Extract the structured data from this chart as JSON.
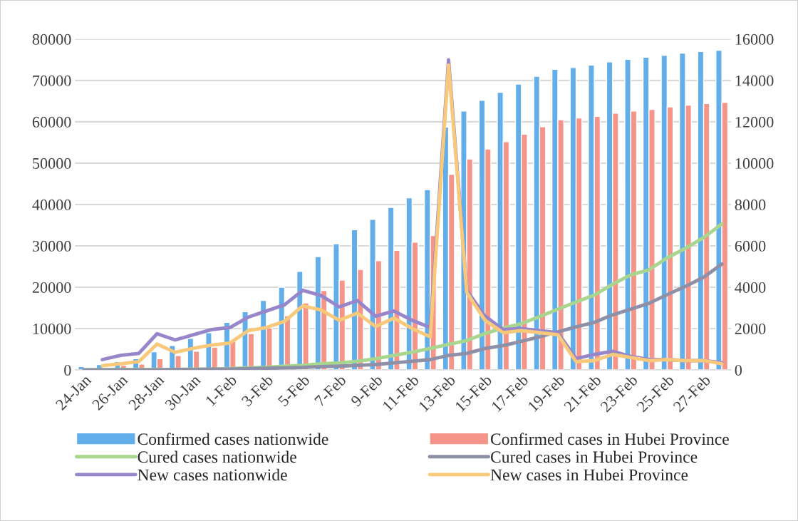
{
  "chart_data": {
    "type": "bar",
    "categories": [
      "24-Jan",
      null,
      "26-Jan",
      null,
      "28-Jan",
      null,
      "30-Jan",
      null,
      "1-Feb",
      null,
      "3-Feb",
      null,
      "5-Feb",
      null,
      "7-Feb",
      null,
      "9-Feb",
      null,
      "11-Feb",
      null,
      "13-Feb",
      null,
      "15-Feb",
      null,
      "17-Feb",
      null,
      "19-Feb",
      null,
      "21-Feb",
      null,
      "23-Feb",
      null,
      "25-Feb",
      null,
      "27-Feb",
      null
    ],
    "series": [
      {
        "name": "Confirmed cases nationwide",
        "color": "#62aeea",
        "values": [
          800,
          1300,
          2000,
          2700,
          4400,
          5900,
          7600,
          9000,
          11500,
          14100,
          16800,
          20000,
          23800,
          27400,
          30500,
          33900,
          36400,
          39300,
          41600,
          43600,
          58700,
          62600,
          65200,
          67100,
          69100,
          71000,
          72700,
          73100,
          73700,
          74500,
          75100,
          75600,
          76100,
          76600,
          77000,
          77300
        ]
      },
      {
        "name": "Confirmed cases in Hubei Province",
        "color": "#f5958a",
        "values": [
          null,
          null,
          1100,
          1400,
          2700,
          3500,
          4500,
          5500,
          6900,
          8800,
          10100,
          13100,
          16200,
          19200,
          21700,
          24300,
          26400,
          28900,
          30900,
          32500,
          47300,
          51000,
          53400,
          55200,
          57000,
          58800,
          60500,
          60900,
          61300,
          62100,
          62600,
          63000,
          63600,
          64000,
          64400,
          64700
        ]
      },
      {
        "name": "Cured cases nationwide",
        "type": "line",
        "color": "#a9d68e",
        "values": [
          0,
          0,
          100,
          100,
          100,
          100,
          200,
          200,
          300,
          500,
          600,
          900,
          1100,
          1500,
          1700,
          2100,
          2700,
          3500,
          4300,
          5200,
          6200,
          7100,
          8800,
          10100,
          11200,
          12900,
          14700,
          16400,
          18100,
          20700,
          23000,
          24200,
          27100,
          29400,
          32000,
          35300
        ]
      },
      {
        "name": "Cured cases in Hubei Province",
        "type": "line",
        "color": "#8e90a8",
        "values": [
          0,
          0,
          0,
          0,
          0,
          100,
          100,
          200,
          200,
          300,
          400,
          500,
          600,
          800,
          900,
          1100,
          1300,
          1700,
          2100,
          2500,
          3500,
          4000,
          5200,
          5900,
          6900,
          8000,
          9200,
          10400,
          11500,
          13300,
          14700,
          16100,
          18200,
          20200,
          22400,
          25600
        ]
      },
      {
        "name": "New cases nationwide",
        "type": "line",
        "axis": "y2",
        "color": "#9886cb",
        "values": [
          null,
          500,
          700,
          800,
          1750,
          1450,
          1700,
          1950,
          2050,
          2550,
          2850,
          3150,
          3850,
          3600,
          3050,
          3350,
          2600,
          2850,
          2400,
          2050,
          15000,
          3850,
          2600,
          1950,
          2000,
          1900,
          1800,
          550,
          750,
          900,
          650,
          500,
          500,
          450,
          450,
          350
        ]
      },
      {
        "name": "New cases in Hubei Province",
        "type": "line",
        "axis": "y2",
        "color": "#f8c97a",
        "values": [
          null,
          200,
          300,
          400,
          1250,
          850,
          1050,
          1200,
          1300,
          1900,
          2050,
          2350,
          3100,
          2900,
          2400,
          2750,
          2100,
          2500,
          2000,
          1600,
          14750,
          3750,
          2400,
          1800,
          1900,
          1800,
          1700,
          400,
          450,
          750,
          600,
          450,
          500,
          450,
          450,
          300
        ]
      }
    ],
    "ylim": [
      0,
      80000
    ],
    "yticks": [
      0,
      10000,
      20000,
      30000,
      40000,
      50000,
      60000,
      70000,
      80000
    ],
    "y2lim": [
      0,
      16000
    ],
    "y2ticks": [
      0,
      2000,
      4000,
      6000,
      8000,
      10000,
      12000,
      14000,
      16000
    ],
    "grid": "y",
    "legend": "bottom",
    "marker": "none",
    "line_style": "solid"
  }
}
